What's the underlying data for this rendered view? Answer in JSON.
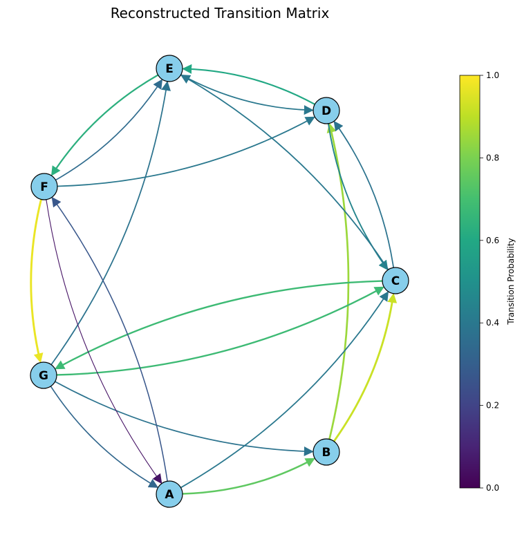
{
  "title": "Reconstructed Transition Matrix",
  "nodes": [
    {
      "id": "E",
      "label": "E"
    },
    {
      "id": "D",
      "label": "D"
    },
    {
      "id": "F",
      "label": "F"
    },
    {
      "id": "C",
      "label": "C"
    },
    {
      "id": "G",
      "label": "G"
    },
    {
      "id": "B",
      "label": "B"
    },
    {
      "id": "A",
      "label": "A"
    }
  ],
  "node_fill": "#87ceeb",
  "edges": [
    {
      "from": "F",
      "to": "G",
      "p": 0.97
    },
    {
      "from": "B",
      "to": "C",
      "p": 0.92
    },
    {
      "from": "B",
      "to": "D",
      "p": 0.85
    },
    {
      "from": "A",
      "to": "B",
      "p": 0.75
    },
    {
      "from": "C",
      "to": "G",
      "p": 0.68
    },
    {
      "from": "G",
      "to": "C",
      "p": 0.68
    },
    {
      "from": "E",
      "to": "F",
      "p": 0.63
    },
    {
      "from": "D",
      "to": "E",
      "p": 0.6
    },
    {
      "from": "D",
      "to": "C",
      "p": 0.45
    },
    {
      "from": "E",
      "to": "D",
      "p": 0.4
    },
    {
      "from": "A",
      "to": "C",
      "p": 0.4
    },
    {
      "from": "F",
      "to": "D",
      "p": 0.4
    },
    {
      "from": "C",
      "to": "E",
      "p": 0.4
    },
    {
      "from": "C",
      "to": "D",
      "p": 0.38
    },
    {
      "from": "G",
      "to": "E",
      "p": 0.38
    },
    {
      "from": "G",
      "to": "B",
      "p": 0.38
    },
    {
      "from": "F",
      "to": "E",
      "p": 0.35
    },
    {
      "from": "G",
      "to": "A",
      "p": 0.33
    },
    {
      "from": "A",
      "to": "F",
      "p": 0.27
    },
    {
      "from": "F",
      "to": "A",
      "p": 0.05
    }
  ],
  "colorbar": {
    "label": "Transition Probability",
    "ticks": [
      "0.0",
      "0.2",
      "0.4",
      "0.6",
      "0.8",
      "1.0"
    ],
    "tick_values": [
      0,
      0.2,
      0.4,
      0.6,
      0.8,
      1.0
    ],
    "range": [
      0,
      1
    ],
    "colormap": "viridis"
  }
}
